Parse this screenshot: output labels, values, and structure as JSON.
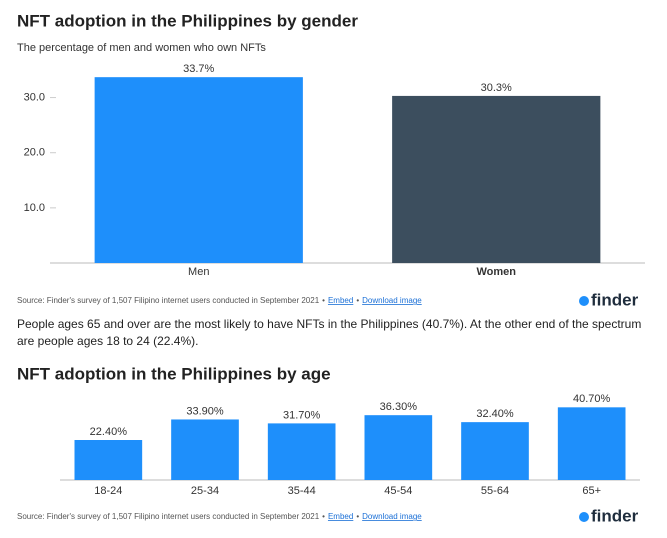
{
  "chart_data": [
    {
      "type": "bar",
      "title": "NFT adoption in the Philippines by gender",
      "subtitle": "The percentage of men and women who own NFTs",
      "categories": [
        "Men",
        "Women"
      ],
      "values": [
        33.7,
        30.3
      ],
      "value_labels": [
        "33.7%",
        "30.3%"
      ],
      "colors": [
        "#1e8ffb",
        "#3c4e5e"
      ],
      "ylim": [
        0,
        35
      ],
      "yticks": [
        {
          "value": 10,
          "label": "10.0"
        },
        {
          "value": 20,
          "label": "20.0"
        },
        {
          "value": 30,
          "label": "30.0"
        }
      ],
      "source": "Source: Finder's survey of 1,507 Filipino internet users conducted in September 2021",
      "separator": "•",
      "links": [
        "Embed",
        "Download image"
      ],
      "logo": "finder"
    },
    {
      "type": "bar",
      "title": "NFT adoption in the Philippines by age",
      "categories": [
        "18-24",
        "25-34",
        "35-44",
        "45-54",
        "55-64",
        "65+"
      ],
      "values": [
        22.4,
        33.9,
        31.7,
        36.3,
        32.4,
        40.7
      ],
      "value_labels": [
        "22.40%",
        "33.90%",
        "31.70%",
        "36.30%",
        "32.40%",
        "40.70%"
      ],
      "colors": [
        "#1e8ffb",
        "#1e8ffb",
        "#1e8ffb",
        "#1e8ffb",
        "#1e8ffb",
        "#1e8ffb"
      ],
      "ylim": [
        0,
        42
      ],
      "source": "Source: Finder's survey of 1,507 Filipino internet users conducted in September 2021",
      "separator": "•",
      "links": [
        "Embed",
        "Download image"
      ],
      "logo": "finder"
    }
  ],
  "paragraph": "People ages 65 and over are the most likely to have NFTs in the Philippines (40.7%). At the other end of the spectrum are people ages 18 to 24 (22.4%)."
}
